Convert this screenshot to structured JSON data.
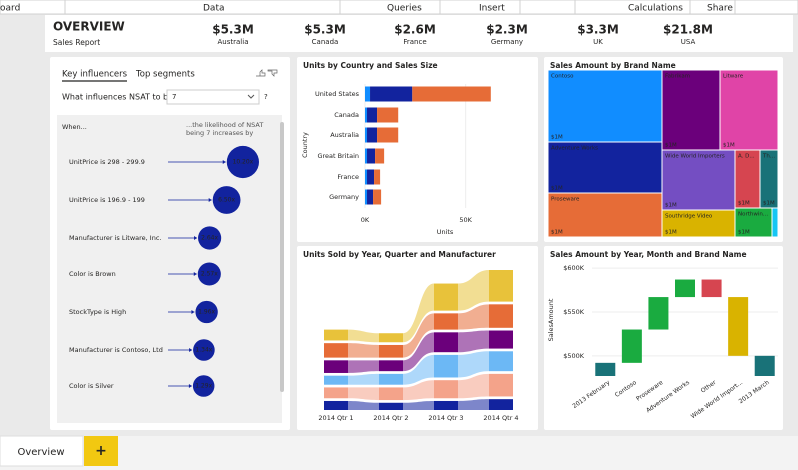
{
  "menu": [
    "oard",
    "Data",
    "Queries",
    "Insert",
    "Calculations",
    "Share"
  ],
  "header": {
    "title": "OVERVIEW",
    "subtitle": "Sales Report",
    "kpis": [
      {
        "value": "$5.3M",
        "label": "Australia"
      },
      {
        "value": "$5.3M",
        "label": "Canada"
      },
      {
        "value": "$2.6M",
        "label": "France"
      },
      {
        "value": "$2.3M",
        "label": "Germany"
      },
      {
        "value": "$3.3M",
        "label": "UK"
      },
      {
        "value": "$21.8M",
        "label": "USA"
      }
    ]
  },
  "key_influencers": {
    "tabs": [
      "Key influencers",
      "Top segments"
    ],
    "question": "What influences NSAT to be",
    "selected": "7",
    "help": "?",
    "col_left": "When...",
    "col_right": "...the likelihood of NSAT being 7 increases by",
    "rows": [
      {
        "factor": "UnitPrice is 298 - 299.9",
        "value": 10.2,
        "label": "10.20x"
      },
      {
        "factor": "UnitPrice is 196.9 - 199",
        "value": 6.5,
        "label": "6.50x"
      },
      {
        "factor": "Manufacturer is Litware, Inc.",
        "value": 2.64,
        "label": "2.64x"
      },
      {
        "factor": "Color is Brown",
        "value": 2.57,
        "label": "2.57x"
      },
      {
        "factor": "StockType is High",
        "value": 1.96,
        "label": "1.96x"
      },
      {
        "factor": "Manufacturer is Contoso, Ltd",
        "value": 1.34,
        "label": "1.34x"
      },
      {
        "factor": "Color is Silver",
        "value": 1.29,
        "label": "1.29x"
      }
    ]
  },
  "charts": [
    {
      "type": "bar",
      "orientation": "horizontal",
      "stacked": true,
      "title": "Units by Country and Sales Size",
      "categories": [
        "United States",
        "Canada",
        "Australia",
        "Great Britain",
        "France",
        "Germany"
      ],
      "series": [
        {
          "color": "#118DFF",
          "values": [
            2500,
            1000,
            1000,
            1000,
            1000,
            1000
          ]
        },
        {
          "color": "#12239E",
          "values": [
            21000,
            5000,
            5000,
            4000,
            3500,
            3000
          ]
        },
        {
          "color": "#E66C37",
          "values": [
            39000,
            10500,
            10500,
            4500,
            3000,
            4000
          ]
        }
      ],
      "xlabel": "Units",
      "ylabel": "Country",
      "xlim": [
        0,
        77000
      ],
      "xticks": [
        {
          "value": 0,
          "label": "0K"
        },
        {
          "value": 50000,
          "label": "50K"
        }
      ],
      "grid": true
    },
    {
      "type": "treemap",
      "title": "Sales Amount by Brand Name",
      "categories": [
        "Contoso",
        "Fabrikam",
        "Litware",
        "Adventure Works",
        "Wide World Importers",
        "A. D...",
        "Th...",
        "Proseware",
        "Southridge Video",
        "Northwin...",
        null
      ],
      "values": [
        1400000,
        900000,
        800000,
        1000000,
        800000,
        550000,
        500000,
        950000,
        600000,
        550000,
        100000
      ],
      "value_labels": [
        "$1M",
        "$1M",
        "$1M",
        "$1M",
        "$1M",
        "$1M",
        "$1M",
        "$1M",
        "$1M",
        "$1M",
        null
      ],
      "colors": [
        "#118DFF",
        "#6B007B",
        "#E044A7",
        "#12239E",
        "#744EC2",
        "#D64550",
        "#197278",
        "#E66C37",
        "#D9B300",
        "#1AAB40",
        "#15C6F4"
      ]
    },
    {
      "type": "ribbon",
      "title": "Units Sold by Year, Quarter and Manufacturer",
      "categories": [
        "2014 Qtr 1",
        "2014 Qtr 2",
        "2014 Qtr 3",
        "2014 Qtr 4"
      ],
      "series": [
        {
          "color": "#12239E",
          "values": [
            10,
            8,
            10,
            12
          ]
        },
        {
          "color": "#F4A38A",
          "values": [
            12,
            14,
            20,
            25
          ]
        },
        {
          "color": "#6CB8F5",
          "values": [
            10,
            12,
            25,
            22
          ]
        },
        {
          "color": "#6B007B",
          "values": [
            14,
            12,
            22,
            20
          ]
        },
        {
          "color": "#E66C37",
          "values": [
            16,
            14,
            18,
            26
          ]
        },
        {
          "color": "#E8C23A",
          "values": [
            12,
            10,
            30,
            35
          ]
        }
      ]
    },
    {
      "type": "waterfall",
      "title": "Sales Amount by Year, Month and Brand Name",
      "categories": [
        "2013 February",
        "Contoso",
        "Proseware",
        "Adventure Works",
        "Other",
        "Wide World Import...",
        "2013 March"
      ],
      "values": [
        492000,
        38000,
        37000,
        20000,
        -20000,
        -67000,
        500000
      ],
      "is_total": [
        true,
        false,
        false,
        false,
        false,
        false,
        true
      ],
      "colors": [
        "#197278",
        "#1AAB40",
        "#1AAB40",
        "#1AAB40",
        "#D64550",
        "#D9B300",
        "#197278"
      ],
      "ylabel": "SalesAmount",
      "ylim": [
        477000,
        607000
      ],
      "yticks": [
        {
          "value": 500000,
          "label": "$500K"
        },
        {
          "value": 550000,
          "label": "$550K"
        },
        {
          "value": 600000,
          "label": "$600K"
        }
      ],
      "grid": true
    }
  ],
  "tabs": [
    "Overview",
    "+"
  ]
}
